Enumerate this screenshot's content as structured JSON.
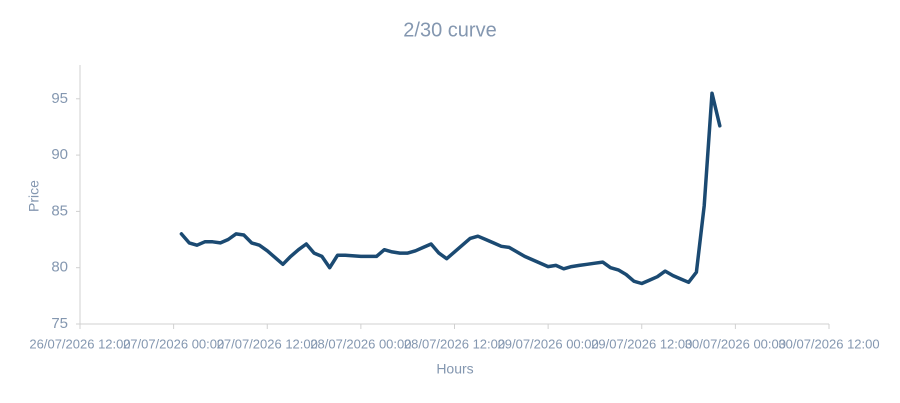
{
  "chart_data": {
    "type": "line",
    "title": "2/30 curve",
    "x_label": "Hours",
    "y_label": "Price",
    "x": [
      "27/07/2026 01:00",
      "27/07/2026 02:00",
      "27/07/2026 03:00",
      "27/07/2026 04:00",
      "27/07/2026 05:00",
      "27/07/2026 06:00",
      "27/07/2026 07:00",
      "27/07/2026 08:00",
      "27/07/2026 09:00",
      "27/07/2026 10:00",
      "27/07/2026 11:00",
      "27/07/2026 12:00",
      "27/07/2026 13:00",
      "27/07/2026 14:00",
      "27/07/2026 15:00",
      "27/07/2026 16:00",
      "27/07/2026 17:00",
      "27/07/2026 18:00",
      "27/07/2026 19:00",
      "27/07/2026 20:00",
      "27/07/2026 21:00",
      "27/07/2026 22:00",
      "28/07/2026 00:00",
      "28/07/2026 02:00",
      "28/07/2026 03:00",
      "28/07/2026 04:00",
      "28/07/2026 05:00",
      "28/07/2026 06:00",
      "28/07/2026 07:00",
      "28/07/2026 08:00",
      "28/07/2026 09:00",
      "28/07/2026 10:00",
      "28/07/2026 11:00",
      "28/07/2026 12:00",
      "28/07/2026 13:00",
      "28/07/2026 14:00",
      "28/07/2026 15:00",
      "28/07/2026 16:00",
      "28/07/2026 17:00",
      "28/07/2026 18:00",
      "28/07/2026 19:00",
      "28/07/2026 20:00",
      "28/07/2026 21:00",
      "29/07/2026 00:00",
      "29/07/2026 01:00",
      "29/07/2026 02:00",
      "29/07/2026 03:00",
      "29/07/2026 04:00",
      "29/07/2026 05:00",
      "29/07/2026 06:00",
      "29/07/2026 07:00",
      "29/07/2026 08:00",
      "29/07/2026 09:00",
      "29/07/2026 10:00",
      "29/07/2026 11:00",
      "29/07/2026 12:00",
      "29/07/2026 13:00",
      "29/07/2026 14:00",
      "29/07/2026 15:00",
      "29/07/2026 16:00",
      "29/07/2026 17:00",
      "29/07/2026 18:00",
      "29/07/2026 19:00",
      "29/07/2026 20:00",
      "29/07/2026 21:00",
      "29/07/2026 22:00"
    ],
    "series": [
      {
        "name": "2/30 curve",
        "color": "#1b4a72",
        "values": [
          83.0,
          82.2,
          82.0,
          82.3,
          82.3,
          82.2,
          82.5,
          83.0,
          82.9,
          82.2,
          82.0,
          81.5,
          80.9,
          80.3,
          81.0,
          81.6,
          82.1,
          81.3,
          81.0,
          80.0,
          81.1,
          81.1,
          81.0,
          81.0,
          81.6,
          81.4,
          81.3,
          81.3,
          81.5,
          81.8,
          82.1,
          81.3,
          80.8,
          81.4,
          82.0,
          82.6,
          82.8,
          82.5,
          82.2,
          81.9,
          81.8,
          81.4,
          81.0,
          80.1,
          80.2,
          79.9,
          80.1,
          80.2,
          80.3,
          80.4,
          80.5,
          80.0,
          79.8,
          79.4,
          78.8,
          78.6,
          78.9,
          79.2,
          79.7,
          79.3,
          79.0,
          78.7,
          79.6,
          85.5,
          95.5,
          92.6
        ]
      }
    ],
    "xlim": [
      "26/07/2026 12:00",
      "30/07/2026 12:00"
    ],
    "xticks": [
      "26/07/2026 12:00",
      "27/07/2026 00:00",
      "27/07/2026 12:00",
      "28/07/2026 00:00",
      "28/07/2026 12:00",
      "29/07/2026 00:00",
      "29/07/2026 12:00",
      "30/07/2026 00:00",
      "30/07/2026 12:00"
    ],
    "ylim": [
      75,
      98
    ],
    "yticks": [
      75,
      80,
      85,
      90,
      95
    ],
    "grid": false
  }
}
